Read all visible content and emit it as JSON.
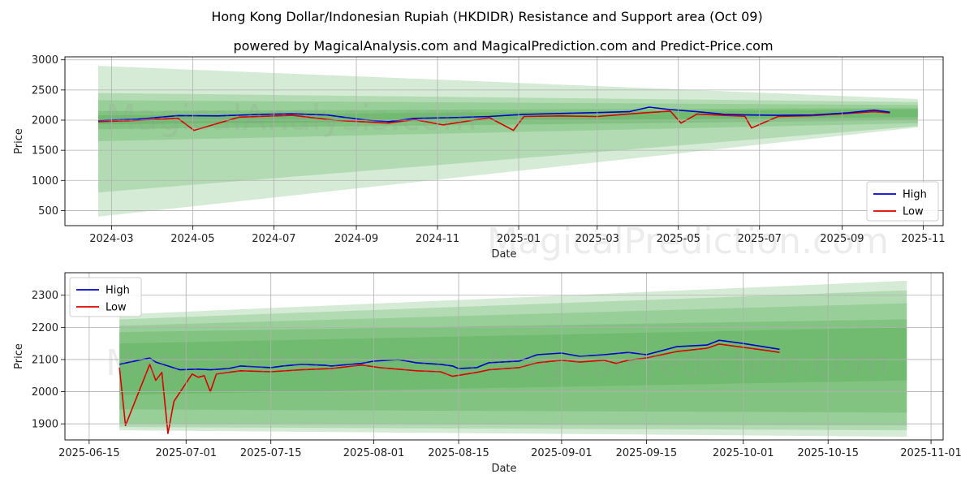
{
  "title": "Hong Kong Dollar/Indonesian Rupiah (HKDIDR) Resistance and Support area (Oct 09)",
  "subtitle": "powered by MagicalAnalysis.com and MagicalPrediction.com and Predict-Price.com",
  "watermark_left": "MagicalAnalysis.com",
  "watermark_right": "MagicalPrediction.com",
  "colors": {
    "high": "#0000cc",
    "low": "#dd0000",
    "band": "#2e9a2e",
    "grid": "#b0b0b0"
  },
  "chart_data": [
    {
      "type": "line",
      "name": "top-chart",
      "xlabel": "Date",
      "ylabel": "Price",
      "grid": true,
      "legend": "bottom-right",
      "xlim": [
        "2024-01-26",
        "2025-11-16"
      ],
      "ylim": [
        250,
        3050
      ],
      "x_ticks": [
        "2024-03",
        "2024-05",
        "2024-07",
        "2024-09",
        "2024-11",
        "2025-01",
        "2025-03",
        "2025-05",
        "2025-07",
        "2025-09",
        "2025-11"
      ],
      "y_ticks": [
        500,
        1000,
        1500,
        2000,
        2500,
        3000
      ],
      "series": [
        {
          "name": "High",
          "dates": [
            "2024-02-20",
            "2024-03-20",
            "2024-04-20",
            "2024-05-20",
            "2024-06-20",
            "2024-07-15",
            "2024-08-10",
            "2024-09-05",
            "2024-09-25",
            "2024-10-15",
            "2024-11-10",
            "2024-12-10",
            "2025-01-05",
            "2025-02-01",
            "2025-03-01",
            "2025-03-25",
            "2025-04-09",
            "2025-04-25",
            "2025-05-15",
            "2025-06-05",
            "2025-06-25",
            "2025-07-15",
            "2025-08-10",
            "2025-09-05",
            "2025-09-25",
            "2025-10-07"
          ],
          "values": [
            1995,
            2015,
            2075,
            2070,
            2095,
            2105,
            2085,
            2010,
            1975,
            2030,
            2040,
            2060,
            2095,
            2110,
            2125,
            2140,
            2215,
            2175,
            2140,
            2095,
            2085,
            2080,
            2085,
            2120,
            2165,
            2130
          ]
        },
        {
          "name": "Low",
          "dates": [
            "2024-02-20",
            "2024-03-15",
            "2024-04-20",
            "2024-05-02",
            "2024-06-05",
            "2024-07-15",
            "2024-08-15",
            "2024-09-05",
            "2024-09-25",
            "2024-10-15",
            "2024-11-05",
            "2024-12-10",
            "2024-12-28",
            "2025-01-05",
            "2025-02-01",
            "2025-03-01",
            "2025-04-05",
            "2025-04-25",
            "2025-05-03",
            "2025-05-15",
            "2025-06-20",
            "2025-06-25",
            "2025-07-15",
            "2025-08-10",
            "2025-09-05",
            "2025-09-25",
            "2025-10-07"
          ],
          "values": [
            1975,
            1990,
            2030,
            1830,
            2050,
            2080,
            2000,
            1975,
            1950,
            2010,
            1920,
            2040,
            1830,
            2060,
            2070,
            2060,
            2120,
            2150,
            1950,
            2100,
            2065,
            1870,
            2060,
            2075,
            2110,
            2140,
            2120
          ]
        }
      ],
      "bands": [
        {
          "x_start": "2024-02-20",
          "x_end": "2025-10-28",
          "start": [
            400,
            2900
          ],
          "end": [
            1880,
            2350
          ]
        },
        {
          "x_start": "2024-02-20",
          "x_end": "2025-10-28",
          "start": [
            800,
            2450
          ],
          "end": [
            1900,
            2300
          ]
        },
        {
          "x_start": "2024-02-20",
          "x_end": "2025-10-28",
          "start": [
            1650,
            2330
          ],
          "end": [
            1950,
            2250
          ]
        },
        {
          "x_start": "2024-02-20",
          "x_end": "2025-10-28",
          "start": [
            1850,
            2150
          ],
          "end": [
            2000,
            2200
          ]
        },
        {
          "x_start": "2024-02-20",
          "x_end": "2025-10-28",
          "start": [
            1930,
            2080
          ],
          "end": [
            2050,
            2180
          ]
        }
      ]
    },
    {
      "type": "line",
      "name": "bottom-chart",
      "xlabel": "Date",
      "ylabel": "Price",
      "grid": true,
      "legend": "top-left",
      "xlim": [
        "2025-06-11",
        "2025-11-03"
      ],
      "ylim": [
        1850,
        2370
      ],
      "x_ticks": [
        "2025-06-15",
        "2025-07-01",
        "2025-07-15",
        "2025-08-01",
        "2025-08-15",
        "2025-09-01",
        "2025-09-15",
        "2025-10-01",
        "2025-10-15",
        "2025-11-01"
      ],
      "y_ticks": [
        1900,
        2000,
        2100,
        2200,
        2300
      ],
      "series": [
        {
          "name": "High",
          "dates": [
            "2025-06-20",
            "2025-06-22",
            "2025-06-25",
            "2025-06-26",
            "2025-06-28",
            "2025-06-30",
            "2025-07-03",
            "2025-07-05",
            "2025-07-08",
            "2025-07-10",
            "2025-07-15",
            "2025-07-17",
            "2025-07-20",
            "2025-07-24",
            "2025-07-25",
            "2025-07-30",
            "2025-08-01",
            "2025-08-05",
            "2025-08-08",
            "2025-08-12",
            "2025-08-14",
            "2025-08-15",
            "2025-08-18",
            "2025-08-20",
            "2025-08-25",
            "2025-08-28",
            "2025-09-01",
            "2025-09-04",
            "2025-09-08",
            "2025-09-12",
            "2025-09-15",
            "2025-09-18",
            "2025-09-20",
            "2025-09-25",
            "2025-09-27",
            "2025-10-01",
            "2025-10-05",
            "2025-10-07"
          ],
          "values": [
            2085,
            2093,
            2105,
            2092,
            2080,
            2068,
            2070,
            2068,
            2072,
            2080,
            2075,
            2080,
            2085,
            2082,
            2080,
            2088,
            2095,
            2100,
            2090,
            2085,
            2080,
            2072,
            2075,
            2090,
            2095,
            2115,
            2120,
            2110,
            2115,
            2122,
            2115,
            2130,
            2140,
            2145,
            2160,
            2150,
            2138,
            2132
          ]
        },
        {
          "name": "Low",
          "dates": [
            "2025-06-20",
            "2025-06-21",
            "2025-06-25",
            "2025-06-26",
            "2025-06-27",
            "2025-06-28",
            "2025-06-29",
            "2025-07-02",
            "2025-07-03",
            "2025-07-04",
            "2025-07-05",
            "2025-07-06",
            "2025-07-10",
            "2025-07-15",
            "2025-07-20",
            "2025-07-25",
            "2025-07-30",
            "2025-08-02",
            "2025-08-08",
            "2025-08-12",
            "2025-08-14",
            "2025-08-18",
            "2025-08-20",
            "2025-08-25",
            "2025-08-28",
            "2025-09-01",
            "2025-09-04",
            "2025-09-08",
            "2025-09-10",
            "2025-09-12",
            "2025-09-15",
            "2025-09-20",
            "2025-09-25",
            "2025-09-27",
            "2025-10-01",
            "2025-10-05",
            "2025-10-07"
          ],
          "values": [
            2075,
            1895,
            2085,
            2035,
            2060,
            1870,
            1970,
            2055,
            2045,
            2050,
            2000,
            2055,
            2065,
            2062,
            2068,
            2072,
            2083,
            2075,
            2065,
            2062,
            2048,
            2060,
            2068,
            2075,
            2090,
            2098,
            2092,
            2098,
            2088,
            2098,
            2105,
            2125,
            2135,
            2148,
            2138,
            2128,
            2122
          ]
        }
      ],
      "bands": [
        {
          "x_start": "2025-06-20",
          "x_end": "2025-10-28",
          "start": [
            1880,
            2240
          ],
          "end": [
            1860,
            2345
          ]
        },
        {
          "x_start": "2025-06-20",
          "x_end": "2025-10-28",
          "start": [
            1890,
            2225
          ],
          "end": [
            1880,
            2315
          ]
        },
        {
          "x_start": "2025-06-20",
          "x_end": "2025-10-28",
          "start": [
            1900,
            2205
          ],
          "end": [
            1895,
            2275
          ]
        },
        {
          "x_start": "2025-06-20",
          "x_end": "2025-10-28",
          "start": [
            1945,
            2185
          ],
          "end": [
            1935,
            2225
          ]
        },
        {
          "x_start": "2025-06-20",
          "x_end": "2025-10-28",
          "start": [
            1990,
            2150
          ],
          "end": [
            2035,
            2200
          ]
        }
      ]
    }
  ]
}
